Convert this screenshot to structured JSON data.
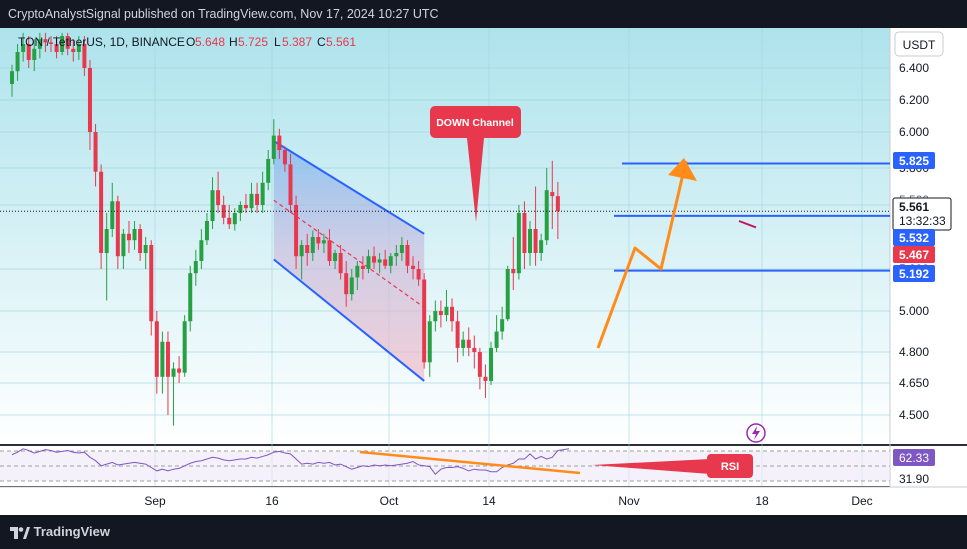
{
  "header": {
    "publisher_line": "CryptoAnalystSignal published on TradingView.com, Nov 17, 2024 10:27 UTC"
  },
  "legend": {
    "symbol": "TON / TetherUS, 1D, BINANCE",
    "o_label": "O",
    "o_value": "5.648",
    "h_label": "H",
    "h_value": "5.725",
    "l_label": "L",
    "l_value": "5.387",
    "c_label": "C",
    "c_value": "5.561"
  },
  "currency_button": "USDT",
  "annotations": {
    "channel_label": "DOWN Channel",
    "rsi_label": "RSI"
  },
  "price_tags": {
    "level_upper": "5.825",
    "last_price": "5.561",
    "countdown": "13:32:33",
    "level_mid": "5.532",
    "prev_close": "5.467",
    "level_lower": "5.192",
    "hidden_level": "5.560"
  },
  "rsi_tags": {
    "current": "62.33",
    "low": "31.90"
  },
  "footer": {
    "brand": "TradingView"
  },
  "colors": {
    "bg_gradient_top": "#aee3ec",
    "bg_gradient_bottom": "#ffffff",
    "up": "#26a043",
    "down": "#e8384d",
    "channel_line": "#2962ff",
    "channel_fill_top": "#76b4f0",
    "channel_fill_bottom": "#f2b8c4",
    "level_line": "#2962ff",
    "orange": "#ff8c1a",
    "rsi_line": "#7e57c2"
  },
  "chart_data": {
    "type": "candlestick",
    "symbol": "TON / TetherUS",
    "interval": "1D",
    "exchange": "BINANCE",
    "y_ticks": [
      6.4,
      6.2,
      6.0,
      5.8,
      5.6,
      5.2,
      5.0,
      4.8,
      4.65,
      4.5
    ],
    "y_tick_labels": [
      "6.400",
      "6.200",
      "6.000",
      "5.800",
      "5.600",
      "5.200",
      "5.000",
      "4.800",
      "4.650",
      "4.500"
    ],
    "x_tick_labels": [
      "Sep",
      "16",
      "Oct",
      "14",
      "Nov",
      "18",
      "Dec"
    ],
    "horizontal_levels": [
      5.825,
      5.532,
      5.192
    ],
    "down_channel": {
      "upper": [
        [
          "Sep 27",
          5.95
        ],
        [
          "Oct 24",
          5.42
        ]
      ],
      "lower": [
        [
          "Sep 27",
          5.26
        ],
        [
          "Oct 24",
          4.66
        ]
      ],
      "label": "DOWN Channel"
    },
    "candles": [
      {
        "d": "Aug 11",
        "o": 6.3,
        "h": 6.42,
        "l": 6.22,
        "c": 6.38
      },
      {
        "d": "Aug 12",
        "o": 6.38,
        "h": 6.55,
        "l": 6.32,
        "c": 6.5
      },
      {
        "d": "Aug 13",
        "o": 6.5,
        "h": 6.62,
        "l": 6.44,
        "c": 6.55
      },
      {
        "d": "Aug 14",
        "o": 6.55,
        "h": 6.6,
        "l": 6.4,
        "c": 6.45
      },
      {
        "d": "Aug 15",
        "o": 6.45,
        "h": 6.58,
        "l": 6.38,
        "c": 6.52
      },
      {
        "d": "Aug 16",
        "o": 6.52,
        "h": 6.62,
        "l": 6.46,
        "c": 6.58
      },
      {
        "d": "Aug 17",
        "o": 6.58,
        "h": 6.62,
        "l": 6.5,
        "c": 6.56
      },
      {
        "d": "Aug 18",
        "o": 6.56,
        "h": 6.6,
        "l": 6.5,
        "c": 6.55
      },
      {
        "d": "Aug 19",
        "o": 6.55,
        "h": 6.6,
        "l": 6.46,
        "c": 6.5
      },
      {
        "d": "Aug 20",
        "o": 6.5,
        "h": 6.62,
        "l": 6.48,
        "c": 6.6
      },
      {
        "d": "Aug 21",
        "o": 6.6,
        "h": 6.62,
        "l": 6.48,
        "c": 6.52
      },
      {
        "d": "Aug 22",
        "o": 6.52,
        "h": 6.58,
        "l": 6.44,
        "c": 6.5
      },
      {
        "d": "Aug 23",
        "o": 6.5,
        "h": 6.6,
        "l": 6.45,
        "c": 6.55
      },
      {
        "d": "Aug 24",
        "o": 6.55,
        "h": 6.6,
        "l": 6.35,
        "c": 6.4
      },
      {
        "d": "Aug 25",
        "o": 6.4,
        "h": 6.45,
        "l": 5.9,
        "c": 6.0
      },
      {
        "d": "Aug 26",
        "o": 6.0,
        "h": 6.05,
        "l": 5.7,
        "c": 5.78
      },
      {
        "d": "Aug 27",
        "o": 5.78,
        "h": 5.82,
        "l": 5.2,
        "c": 5.3
      },
      {
        "d": "Aug 28",
        "o": 5.3,
        "h": 5.55,
        "l": 5.05,
        "c": 5.45
      },
      {
        "d": "Aug 29",
        "o": 5.45,
        "h": 5.72,
        "l": 5.4,
        "c": 5.62
      },
      {
        "d": "Aug 30",
        "o": 5.62,
        "h": 5.65,
        "l": 5.2,
        "c": 5.28
      },
      {
        "d": "Aug 31",
        "o": 5.28,
        "h": 5.45,
        "l": 5.2,
        "c": 5.42
      },
      {
        "d": "Sep 1",
        "o": 5.42,
        "h": 5.5,
        "l": 5.3,
        "c": 5.38
      },
      {
        "d": "Sep 2",
        "o": 5.38,
        "h": 5.5,
        "l": 5.32,
        "c": 5.45
      },
      {
        "d": "Sep 3",
        "o": 5.45,
        "h": 5.48,
        "l": 5.25,
        "c": 5.3
      },
      {
        "d": "Sep 4",
        "o": 5.3,
        "h": 5.4,
        "l": 5.2,
        "c": 5.35
      },
      {
        "d": "Sep 5",
        "o": 5.35,
        "h": 5.38,
        "l": 4.88,
        "c": 4.95
      },
      {
        "d": "Sep 6",
        "o": 4.95,
        "h": 5.0,
        "l": 4.6,
        "c": 4.68
      },
      {
        "d": "Sep 7",
        "o": 4.68,
        "h": 4.9,
        "l": 4.6,
        "c": 4.85
      },
      {
        "d": "Sep 8",
        "o": 4.85,
        "h": 4.9,
        "l": 4.5,
        "c": 4.68
      },
      {
        "d": "Sep 9",
        "o": 4.68,
        "h": 4.75,
        "l": 4.45,
        "c": 4.72
      },
      {
        "d": "Sep 10",
        "o": 4.72,
        "h": 4.78,
        "l": 4.65,
        "c": 4.7
      },
      {
        "d": "Sep 11",
        "o": 4.7,
        "h": 4.98,
        "l": 4.68,
        "c": 4.95
      },
      {
        "d": "Sep 12",
        "o": 4.95,
        "h": 5.22,
        "l": 4.9,
        "c": 5.18
      },
      {
        "d": "Sep 13",
        "o": 5.18,
        "h": 5.32,
        "l": 5.12,
        "c": 5.25
      },
      {
        "d": "Sep 14",
        "o": 5.25,
        "h": 5.45,
        "l": 5.2,
        "c": 5.38
      },
      {
        "d": "Sep 15",
        "o": 5.38,
        "h": 5.55,
        "l": 5.35,
        "c": 5.5
      },
      {
        "d": "Sep 16",
        "o": 5.5,
        "h": 5.75,
        "l": 5.45,
        "c": 5.68
      },
      {
        "d": "Sep 17",
        "o": 5.68,
        "h": 5.78,
        "l": 5.55,
        "c": 5.6
      },
      {
        "d": "Sep 18",
        "o": 5.6,
        "h": 5.65,
        "l": 5.48,
        "c": 5.52
      },
      {
        "d": "Sep 19",
        "o": 5.52,
        "h": 5.6,
        "l": 5.45,
        "c": 5.48
      },
      {
        "d": "Sep 20",
        "o": 5.48,
        "h": 5.58,
        "l": 5.44,
        "c": 5.55
      },
      {
        "d": "Sep 21",
        "o": 5.55,
        "h": 5.62,
        "l": 5.5,
        "c": 5.6
      },
      {
        "d": "Sep 22",
        "o": 5.6,
        "h": 5.66,
        "l": 5.55,
        "c": 5.58
      },
      {
        "d": "Sep 23",
        "o": 5.58,
        "h": 5.72,
        "l": 5.55,
        "c": 5.66
      },
      {
        "d": "Sep 24",
        "o": 5.66,
        "h": 5.72,
        "l": 5.55,
        "c": 5.6
      },
      {
        "d": "Sep 25",
        "o": 5.6,
        "h": 5.78,
        "l": 5.55,
        "c": 5.72
      },
      {
        "d": "Sep 26",
        "o": 5.72,
        "h": 5.9,
        "l": 5.68,
        "c": 5.85
      },
      {
        "d": "Sep 27",
        "o": 5.85,
        "h": 6.08,
        "l": 5.82,
        "c": 5.98
      },
      {
        "d": "Sep 28",
        "o": 5.98,
        "h": 6.02,
        "l": 5.85,
        "c": 5.9
      },
      {
        "d": "Sep 29",
        "o": 5.9,
        "h": 5.92,
        "l": 5.78,
        "c": 5.82
      },
      {
        "d": "Sep 30",
        "o": 5.82,
        "h": 5.88,
        "l": 5.55,
        "c": 5.6
      },
      {
        "d": "Oct 1",
        "o": 5.6,
        "h": 5.65,
        "l": 5.2,
        "c": 5.28
      },
      {
        "d": "Oct 2",
        "o": 5.28,
        "h": 5.38,
        "l": 5.15,
        "c": 5.35
      },
      {
        "d": "Oct 3",
        "o": 5.35,
        "h": 5.42,
        "l": 5.22,
        "c": 5.3
      },
      {
        "d": "Oct 4",
        "o": 5.3,
        "h": 5.44,
        "l": 5.25,
        "c": 5.4
      },
      {
        "d": "Oct 5",
        "o": 5.4,
        "h": 5.45,
        "l": 5.32,
        "c": 5.36
      },
      {
        "d": "Oct 6",
        "o": 5.36,
        "h": 5.42,
        "l": 5.3,
        "c": 5.38
      },
      {
        "d": "Oct 7",
        "o": 5.38,
        "h": 5.45,
        "l": 5.22,
        "c": 5.25
      },
      {
        "d": "Oct 8",
        "o": 5.25,
        "h": 5.32,
        "l": 5.2,
        "c": 5.3
      },
      {
        "d": "Oct 9",
        "o": 5.3,
        "h": 5.35,
        "l": 5.15,
        "c": 5.18
      },
      {
        "d": "Oct 10",
        "o": 5.18,
        "h": 5.25,
        "l": 5.02,
        "c": 5.08
      },
      {
        "d": "Oct 11",
        "o": 5.08,
        "h": 5.2,
        "l": 5.05,
        "c": 5.16
      },
      {
        "d": "Oct 12",
        "o": 5.16,
        "h": 5.25,
        "l": 5.1,
        "c": 5.22
      },
      {
        "d": "Oct 13",
        "o": 5.22,
        "h": 5.28,
        "l": 5.15,
        "c": 5.2
      },
      {
        "d": "Oct 14",
        "o": 5.2,
        "h": 5.32,
        "l": 5.18,
        "c": 5.28
      },
      {
        "d": "Oct 15",
        "o": 5.28,
        "h": 5.34,
        "l": 5.2,
        "c": 5.24
      },
      {
        "d": "Oct 16",
        "o": 5.24,
        "h": 5.3,
        "l": 5.18,
        "c": 5.26
      },
      {
        "d": "Oct 17",
        "o": 5.26,
        "h": 5.32,
        "l": 5.2,
        "c": 5.22
      },
      {
        "d": "Oct 18",
        "o": 5.22,
        "h": 5.3,
        "l": 5.18,
        "c": 5.28
      },
      {
        "d": "Oct 19",
        "o": 5.28,
        "h": 5.35,
        "l": 5.22,
        "c": 5.3
      },
      {
        "d": "Oct 20",
        "o": 5.3,
        "h": 5.4,
        "l": 5.25,
        "c": 5.35
      },
      {
        "d": "Oct 21",
        "o": 5.35,
        "h": 5.38,
        "l": 5.18,
        "c": 5.22
      },
      {
        "d": "Oct 22",
        "o": 5.22,
        "h": 5.28,
        "l": 5.15,
        "c": 5.2
      },
      {
        "d": "Oct 23",
        "o": 5.2,
        "h": 5.25,
        "l": 5.12,
        "c": 5.15
      },
      {
        "d": "Oct 24",
        "o": 5.15,
        "h": 5.18,
        "l": 4.72,
        "c": 4.75
      },
      {
        "d": "Oct 25",
        "o": 4.75,
        "h": 4.98,
        "l": 4.68,
        "c": 4.95
      },
      {
        "d": "Oct 26",
        "o": 4.95,
        "h": 5.05,
        "l": 4.9,
        "c": 5.0
      },
      {
        "d": "Oct 27",
        "o": 5.0,
        "h": 5.05,
        "l": 4.92,
        "c": 4.98
      },
      {
        "d": "Oct 28",
        "o": 4.98,
        "h": 5.1,
        "l": 4.95,
        "c": 5.02
      },
      {
        "d": "Oct 29",
        "o": 5.02,
        "h": 5.06,
        "l": 4.9,
        "c": 4.95
      },
      {
        "d": "Oct 30",
        "o": 4.95,
        "h": 5.0,
        "l": 4.75,
        "c": 4.82
      },
      {
        "d": "Oct 31",
        "o": 4.82,
        "h": 4.9,
        "l": 4.78,
        "c": 4.86
      },
      {
        "d": "Nov 1",
        "o": 4.86,
        "h": 4.92,
        "l": 4.78,
        "c": 4.82
      },
      {
        "d": "Nov 2",
        "o": 4.82,
        "h": 4.88,
        "l": 4.72,
        "c": 4.8
      },
      {
        "d": "Nov 3",
        "o": 4.8,
        "h": 4.82,
        "l": 4.62,
        "c": 4.68
      },
      {
        "d": "Nov 4",
        "o": 4.68,
        "h": 4.74,
        "l": 4.58,
        "c": 4.66
      },
      {
        "d": "Nov 5",
        "o": 4.66,
        "h": 4.85,
        "l": 4.64,
        "c": 4.82
      },
      {
        "d": "Nov 6",
        "o": 4.82,
        "h": 4.98,
        "l": 4.8,
        "c": 4.9
      },
      {
        "d": "Nov 7",
        "o": 4.9,
        "h": 5.02,
        "l": 4.86,
        "c": 4.96
      },
      {
        "d": "Nov 8",
        "o": 4.96,
        "h": 5.22,
        "l": 4.95,
        "c": 5.2
      },
      {
        "d": "Nov 9",
        "o": 5.2,
        "h": 5.4,
        "l": 5.1,
        "c": 5.18
      },
      {
        "d": "Nov 10",
        "o": 5.18,
        "h": 5.6,
        "l": 5.15,
        "c": 5.55
      },
      {
        "d": "Nov 11",
        "o": 5.55,
        "h": 5.62,
        "l": 5.2,
        "c": 5.3
      },
      {
        "d": "Nov 12",
        "o": 5.3,
        "h": 5.5,
        "l": 5.22,
        "c": 5.45
      },
      {
        "d": "Nov 13",
        "o": 5.45,
        "h": 5.7,
        "l": 5.22,
        "c": 5.3
      },
      {
        "d": "Nov 14",
        "o": 5.3,
        "h": 5.42,
        "l": 5.25,
        "c": 5.38
      },
      {
        "d": "Nov 15",
        "o": 5.38,
        "h": 5.8,
        "l": 5.35,
        "c": 5.68
      },
      {
        "d": "Nov 16",
        "o": 5.67,
        "h": 5.84,
        "l": 5.45,
        "c": 5.648
      },
      {
        "d": "Nov 17",
        "o": 5.648,
        "h": 5.725,
        "l": 5.387,
        "c": 5.561
      }
    ],
    "rsi": {
      "label": "RSI",
      "current": 62.33,
      "visible_low": 31.9
    }
  }
}
